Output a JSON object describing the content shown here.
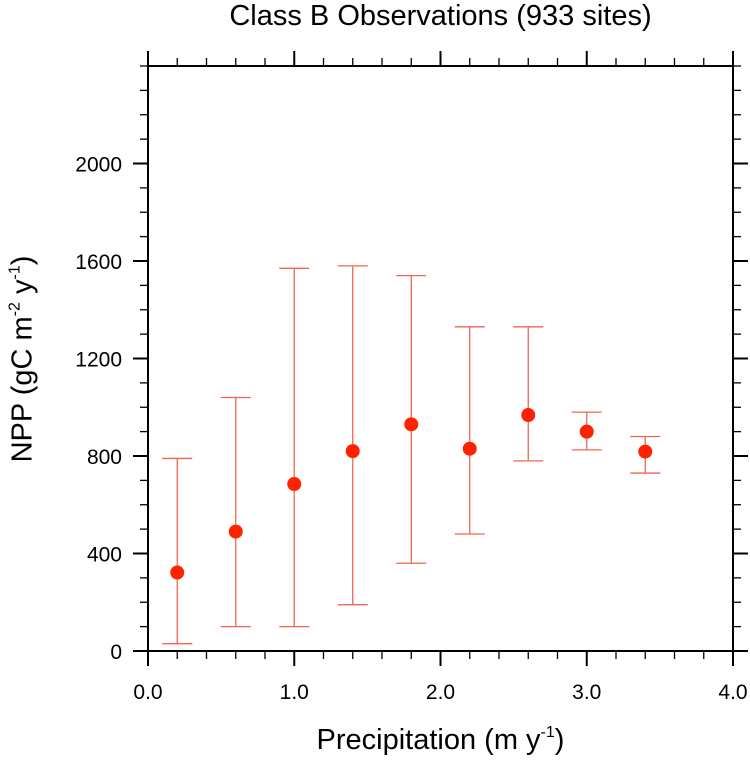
{
  "chart_data": {
    "type": "scatter",
    "title": "Class B Observations (933 sites)",
    "xlabel": "Precipitation (m y",
    "xlabel_sup": "-1",
    "xlabel_end": ")",
    "ylabel": "NPP (gC m",
    "ylabel_sup1": "-2",
    "ylabel_mid": " y",
    "ylabel_sup2": "-1",
    "ylabel_end": ")",
    "xlim": [
      0,
      4.0
    ],
    "ylim": [
      0,
      2400
    ],
    "x_major_ticks": [
      0,
      1,
      2,
      3,
      4
    ],
    "x_tick_labels": [
      "0.0",
      "1.0",
      "2.0",
      "3.0",
      "4.0"
    ],
    "x_minor_step": 0.2,
    "y_major_ticks": [
      0,
      400,
      800,
      1200,
      1600,
      2000
    ],
    "y_tick_labels": [
      "0",
      "400",
      "800",
      "1200",
      "1600",
      "2000"
    ],
    "y_minor_step": 100,
    "grid": false,
    "legend": null,
    "marker_color": "#ff2200",
    "errorbar_color": "#f06652",
    "series": [
      {
        "name": "Class B Observations",
        "x": [
          0.2,
          0.6,
          1.0,
          1.4,
          1.8,
          2.2,
          2.6,
          3.0,
          3.4
        ],
        "y": [
          322,
          490,
          685,
          820,
          930,
          830,
          968,
          900,
          818
        ],
        "y_lower": [
          30,
          100,
          100,
          190,
          360,
          480,
          780,
          825,
          730
        ],
        "y_upper": [
          790,
          1040,
          1570,
          1580,
          1540,
          1330,
          1330,
          980,
          880
        ]
      }
    ]
  }
}
